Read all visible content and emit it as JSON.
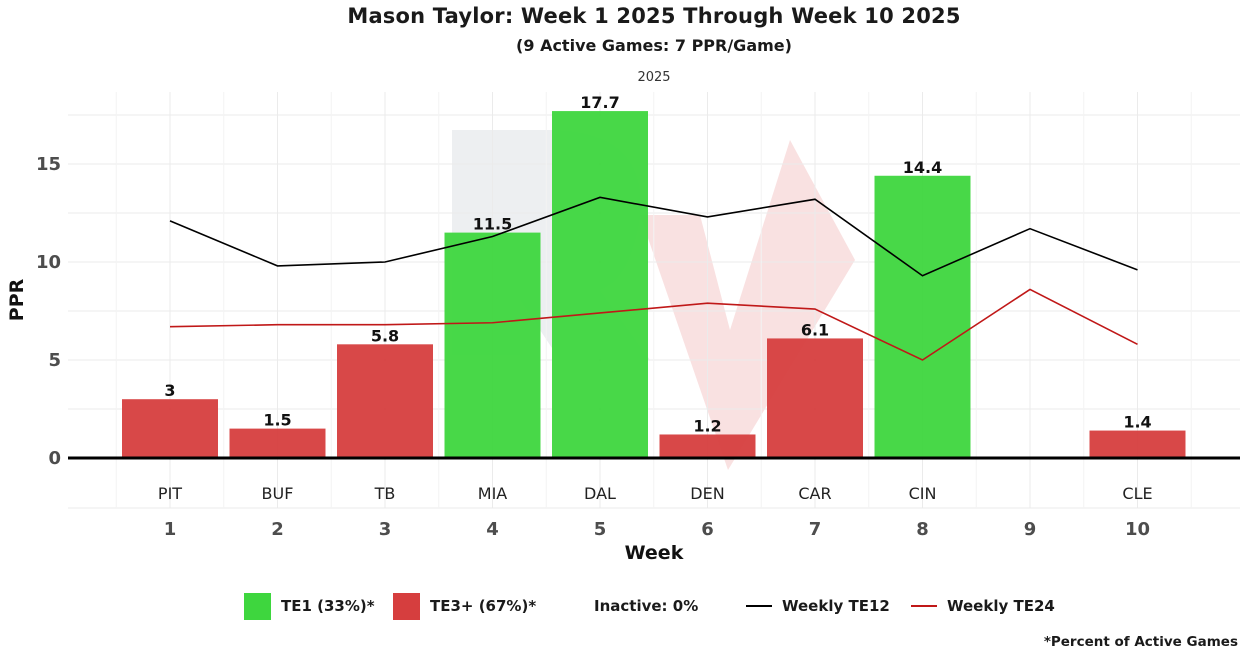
{
  "title": "Mason Taylor: Week 1 2025 Through Week 10 2025",
  "subtitle": "(9 Active Games: 7 PPR/Game)",
  "facet_label": "2025",
  "footnote": "*Percent of Active Games",
  "colors": {
    "te1": "#3ed63e",
    "te3": "#d63e3e",
    "te12": "#000000",
    "te24": "#c01818",
    "zero": "#000000",
    "grid": "#ebebeb"
  },
  "legend": {
    "te1": "TE1 (33%)*",
    "te3": "TE3+ (67%)*",
    "inactive": "Inactive: 0%",
    "te12": "Weekly TE12",
    "te24": "Weekly TE24"
  },
  "chart_data": {
    "type": "bar",
    "xlabel": "Week",
    "ylabel": "PPR",
    "ylim": [
      0,
      18.5
    ],
    "yticks": [
      0,
      5,
      10,
      15
    ],
    "grid": true,
    "weeks": [
      1,
      2,
      3,
      4,
      5,
      6,
      7,
      8,
      9,
      10
    ],
    "opponents": [
      "PIT",
      "BUF",
      "TB",
      "MIA",
      "DAL",
      "DEN",
      "CAR",
      "CIN",
      "",
      "CLE"
    ],
    "bars": [
      {
        "week": 1,
        "value": 3,
        "label": "3",
        "tier": "te3"
      },
      {
        "week": 2,
        "value": 1.5,
        "label": "1.5",
        "tier": "te3"
      },
      {
        "week": 3,
        "value": 5.8,
        "label": "5.8",
        "tier": "te3"
      },
      {
        "week": 4,
        "value": 11.5,
        "label": "11.5",
        "tier": "te1"
      },
      {
        "week": 5,
        "value": 17.7,
        "label": "17.7",
        "tier": "te1"
      },
      {
        "week": 6,
        "value": 1.2,
        "label": "1.2",
        "tier": "te3"
      },
      {
        "week": 7,
        "value": 6.1,
        "label": "6.1",
        "tier": "te3"
      },
      {
        "week": 8,
        "value": 14.4,
        "label": "14.4",
        "tier": "te1"
      },
      {
        "week": 10,
        "value": 1.4,
        "label": "1.4",
        "tier": "te3"
      }
    ],
    "series": [
      {
        "name": "Weekly TE12",
        "values": [
          12.1,
          9.8,
          10.0,
          11.3,
          13.3,
          12.3,
          13.2,
          9.3,
          11.7,
          9.6
        ]
      },
      {
        "name": "Weekly TE24",
        "values": [
          6.7,
          6.8,
          6.8,
          6.9,
          7.4,
          7.9,
          7.6,
          5.0,
          8.6,
          5.8
        ]
      }
    ],
    "legend_position": "bottom"
  }
}
